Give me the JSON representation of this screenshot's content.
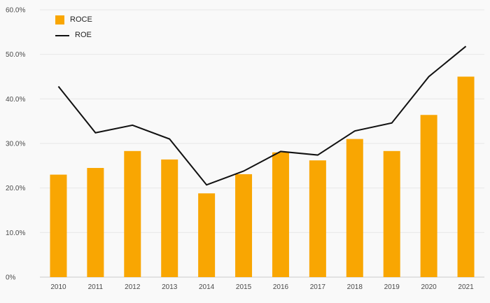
{
  "chart_data": {
    "type": "bar+line",
    "title": "",
    "xlabel": "",
    "ylabel": "",
    "categories": [
      "2010",
      "2011",
      "2012",
      "2013",
      "2014",
      "2015",
      "2016",
      "2017",
      "2018",
      "2019",
      "2020",
      "2021"
    ],
    "series": [
      {
        "name": "ROCE",
        "type": "bar",
        "color": "#F9A602",
        "values": [
          23.0,
          24.5,
          28.3,
          26.4,
          18.8,
          23.1,
          28.0,
          26.2,
          31.0,
          28.3,
          36.4,
          45.0
        ]
      },
      {
        "name": "ROE",
        "type": "line",
        "color": "#111111",
        "values": [
          42.8,
          32.4,
          34.1,
          31.0,
          20.7,
          23.8,
          28.2,
          27.4,
          32.8,
          34.6,
          45.0,
          51.8
        ]
      }
    ],
    "ylim": [
      0,
      60
    ],
    "y_ticks": [
      {
        "value": 0,
        "label": "0%"
      },
      {
        "value": 10,
        "label": "10.0%"
      },
      {
        "value": 20,
        "label": "20.0%"
      },
      {
        "value": 30,
        "label": "30.0%"
      },
      {
        "value": 40,
        "label": "40.0%"
      },
      {
        "value": 50,
        "label": "50.0%"
      },
      {
        "value": 60,
        "label": "60.0%"
      }
    ],
    "grid": true,
    "legend_position": "top-left"
  },
  "legend": {
    "roce_label": "ROCE",
    "roe_label": "ROE"
  },
  "colors": {
    "bar": "#F9A602",
    "line": "#111111",
    "background": "#f9f9f9",
    "grid": "#e8e8e8",
    "axis": "#cccccc",
    "tick_text": "#4a4a4a"
  }
}
